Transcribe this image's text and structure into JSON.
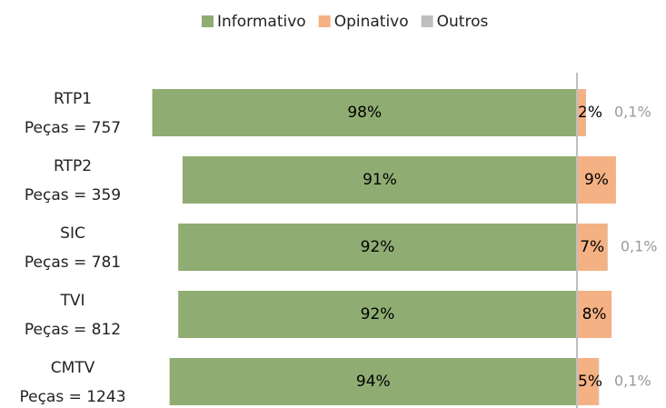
{
  "chart_data": {
    "type": "diverging-bar",
    "categories": [
      [
        "RTP1",
        "Peças = 757"
      ],
      [
        "RTP2",
        "Peças = 359"
      ],
      [
        "SIC",
        "Peças = 781"
      ],
      [
        "TVI",
        "Peças = 812"
      ],
      [
        "CMTV",
        "Peças = 1243"
      ]
    ],
    "series": [
      {
        "name": "Informativo",
        "color": "#8fac72",
        "values": [
          98,
          91,
          92,
          92,
          94
        ],
        "value_labels": [
          "98%",
          "91%",
          "92%",
          "92%",
          "94%"
        ]
      },
      {
        "name": "Opinativo",
        "color": "#f4b183",
        "values": [
          2,
          9,
          7,
          8,
          5
        ],
        "value_labels": [
          "2%",
          "9%",
          "7%",
          "8%",
          "5%"
        ]
      },
      {
        "name": "Outros",
        "color": "#bfbfbf",
        "values": [
          0.1,
          0,
          0.1,
          0,
          0.1
        ],
        "value_labels": [
          "0,1%",
          null,
          "0,1%",
          null,
          "0,1%"
        ]
      }
    ],
    "legend": "top"
  }
}
